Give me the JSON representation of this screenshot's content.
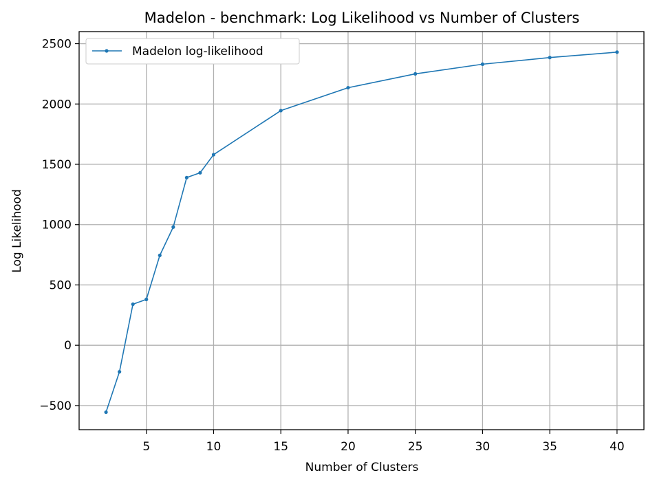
{
  "chart_data": {
    "type": "line",
    "title": "Madelon - benchmark: Log Likelihood vs Number of Clusters",
    "xlabel": "Number of Clusters",
    "ylabel": "Log Likelihood",
    "xlim": [
      0,
      42
    ],
    "ylim": [
      -700,
      2600
    ],
    "xticks": [
      5,
      10,
      15,
      20,
      25,
      30,
      35,
      40
    ],
    "yticks": [
      -500,
      0,
      500,
      1000,
      1500,
      2000,
      2500
    ],
    "ytick_labels": [
      "−500",
      "0",
      "500",
      "1000",
      "1500",
      "2000",
      "2500"
    ],
    "grid": true,
    "legend_position": "top-left",
    "series": [
      {
        "name": "Madelon log-likelihood",
        "color": "#1f77b4",
        "x": [
          2,
          3,
          4,
          5,
          6,
          7,
          8,
          9,
          10,
          15,
          20,
          25,
          30,
          35,
          40
        ],
        "y": [
          -555,
          -220,
          340,
          380,
          745,
          980,
          1390,
          1430,
          1580,
          1945,
          2135,
          2250,
          2330,
          2385,
          2430
        ]
      }
    ]
  }
}
